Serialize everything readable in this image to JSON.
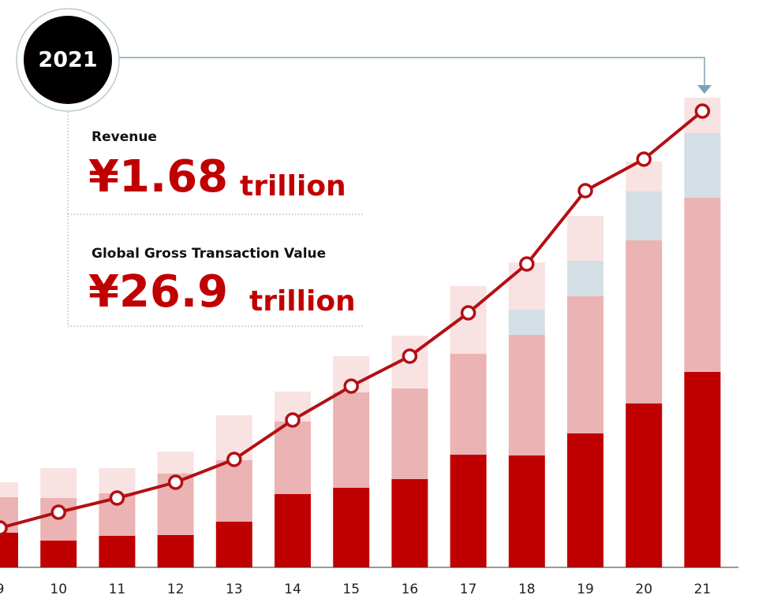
{
  "chart_data": {
    "type": "bar",
    "categories": [
      "9",
      "10",
      "11",
      "12",
      "13",
      "14",
      "15",
      "16",
      "17",
      "18",
      "19",
      "20",
      "21"
    ],
    "ylim": [
      0,
      620
    ],
    "series": [
      {
        "color": "#c00000",
        "values": [
          44,
          34,
          40,
          41,
          58,
          93,
          101,
          112,
          143,
          142,
          170,
          208,
          248
        ]
      },
      {
        "color": "#ebb3b3",
        "values": [
          45,
          54,
          54,
          78,
          78,
          92,
          121,
          115,
          128,
          153,
          174,
          207,
          221
        ]
      },
      {
        "color": "#d3dfe4",
        "values": [
          0,
          0,
          0,
          0,
          0,
          0,
          0,
          0,
          0,
          32,
          45,
          62,
          82
        ]
      },
      {
        "color": "#f9e2e2",
        "values": [
          19,
          38,
          32,
          28,
          57,
          38,
          46,
          67,
          86,
          60,
          57,
          38,
          45
        ]
      },
      {
        "type": "line",
        "color": "#b30f14",
        "values": [
          50,
          70,
          88,
          108,
          137,
          187,
          230,
          268,
          323,
          385,
          478,
          518,
          579
        ]
      }
    ],
    "annotations": {
      "year": "2021",
      "revenue_label": "Revenue",
      "revenue_value": "¥1.68",
      "revenue_unit": "trillion",
      "gtv_label": "Global Gross Transaction Value",
      "gtv_value": "¥26.9",
      "gtv_unit": "trillion"
    }
  }
}
